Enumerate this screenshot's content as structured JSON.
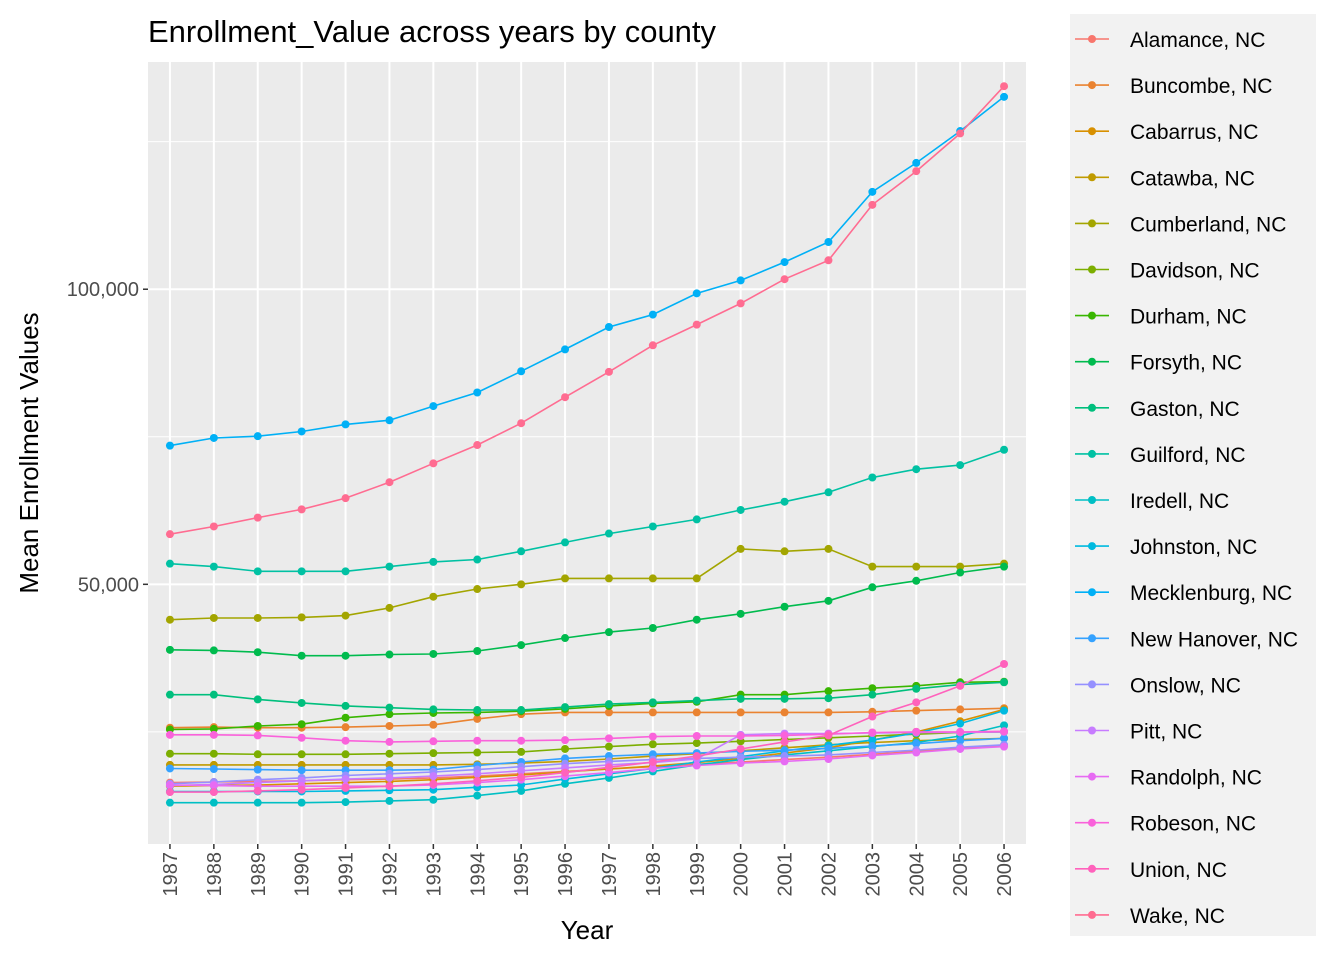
{
  "chart_data": {
    "type": "line",
    "title": "Enrollment_Value across years by county",
    "xlabel": "Year",
    "ylabel": "Mean Enrollment Values",
    "x": [
      1987,
      1988,
      1989,
      1990,
      1991,
      1992,
      1993,
      1994,
      1995,
      1996,
      1997,
      1998,
      1999,
      2000,
      2001,
      2002,
      2003,
      2004,
      2005,
      2006
    ],
    "xlim": [
      1986.5,
      2006.5
    ],
    "ylim": [
      6000,
      138500
    ],
    "y_ticks": [
      50000,
      100000
    ],
    "y_tick_labels": [
      "50,000",
      "100,000"
    ],
    "grid": true,
    "legend_position": "right",
    "series": [
      {
        "name": "Alamance, NC",
        "color": "#F8766D",
        "values": [
          16400,
          16500,
          16600,
          16700,
          16900,
          17000,
          17200,
          17500,
          17900,
          18300,
          18700,
          19100,
          19500,
          19900,
          20300,
          20700,
          21200,
          21700,
          22200,
          22700
        ]
      },
      {
        "name": "Buncombe, NC",
        "color": "#EA8331",
        "values": [
          25700,
          25800,
          25700,
          25700,
          25800,
          26000,
          26200,
          27200,
          28000,
          28300,
          28300,
          28300,
          28300,
          28300,
          28300,
          28300,
          28400,
          28600,
          28800,
          29000
        ]
      },
      {
        "name": "Cabarrus, NC",
        "color": "#D89000",
        "values": [
          15800,
          15900,
          16000,
          16200,
          16400,
          16600,
          16900,
          17300,
          17700,
          18200,
          18700,
          19200,
          19800,
          20500,
          21400,
          22300,
          23600,
          25000,
          26800,
          28800
        ]
      },
      {
        "name": "Catawba, NC",
        "color": "#C09B00",
        "values": [
          19400,
          19400,
          19400,
          19400,
          19400,
          19400,
          19400,
          19500,
          19700,
          20000,
          20400,
          20900,
          21300,
          21800,
          22300,
          22800,
          23200,
          23500,
          23700,
          23900
        ]
      },
      {
        "name": "Cumberland, NC",
        "color": "#A3A500",
        "values": [
          44000,
          44300,
          44300,
          44400,
          44700,
          46000,
          47900,
          49200,
          50000,
          51000,
          51000,
          51000,
          51000,
          56000,
          55600,
          56000,
          53000,
          53000,
          53000,
          53500
        ]
      },
      {
        "name": "Davidson, NC",
        "color": "#7CAE00",
        "values": [
          21300,
          21300,
          21200,
          21200,
          21200,
          21300,
          21400,
          21500,
          21600,
          22100,
          22500,
          22900,
          23100,
          23400,
          23700,
          24000,
          24300,
          24600,
          24900,
          25000
        ]
      },
      {
        "name": "Durham, NC",
        "color": "#39B600",
        "values": [
          25400,
          25500,
          26000,
          26300,
          27400,
          28000,
          28200,
          28300,
          28500,
          28900,
          29400,
          29800,
          30100,
          31300,
          31300,
          31900,
          32400,
          32800,
          33400,
          33500
        ]
      },
      {
        "name": "Forsyth, NC",
        "color": "#00BB4E",
        "values": [
          38900,
          38800,
          38500,
          37900,
          37900,
          38100,
          38200,
          38700,
          39700,
          40900,
          41900,
          42600,
          44000,
          45000,
          46200,
          47200,
          49500,
          50600,
          52000,
          53000
        ]
      },
      {
        "name": "Gaston, NC",
        "color": "#00BF7D",
        "values": [
          31300,
          31300,
          30500,
          29900,
          29400,
          29100,
          28800,
          28700,
          28700,
          29200,
          29700,
          30000,
          30300,
          30600,
          30600,
          30700,
          31300,
          32300,
          33000,
          33400
        ]
      },
      {
        "name": "Guilford, NC",
        "color": "#00C1A3",
        "values": [
          53500,
          53000,
          52200,
          52200,
          52200,
          53000,
          53800,
          54200,
          55600,
          57100,
          58600,
          59800,
          61000,
          62600,
          64000,
          65600,
          68100,
          69500,
          70200,
          72800
        ]
      },
      {
        "name": "Iredell, NC",
        "color": "#00BFC4",
        "values": [
          13000,
          13000,
          13000,
          13000,
          13100,
          13300,
          13500,
          14200,
          15000,
          16200,
          17200,
          18300,
          19400,
          20300,
          21100,
          21800,
          22500,
          23200,
          24300,
          26100
        ]
      },
      {
        "name": "Johnston, NC",
        "color": "#00BAE0",
        "values": [
          14900,
          14900,
          14900,
          14900,
          15000,
          15100,
          15200,
          15600,
          16000,
          17000,
          17900,
          18800,
          19900,
          20800,
          21800,
          22700,
          23600,
          24800,
          26400,
          28600
        ]
      },
      {
        "name": "Mecklenburg, NC",
        "color": "#00B0F6",
        "values": [
          73500,
          74800,
          75100,
          75900,
          77100,
          77800,
          80200,
          82500,
          86100,
          89800,
          93600,
          95700,
          99300,
          101500,
          104600,
          108000,
          116500,
          121400,
          126800,
          132600
        ]
      },
      {
        "name": "New Hanover, NC",
        "color": "#35A2FF",
        "values": [
          18800,
          18700,
          18600,
          18500,
          18500,
          18500,
          18600,
          19300,
          19900,
          20500,
          20900,
          21200,
          21400,
          21700,
          21900,
          22200,
          22600,
          23000,
          23500,
          23900
        ]
      },
      {
        "name": "Onslow, NC",
        "color": "#9590FF",
        "values": [
          16200,
          16500,
          16900,
          17200,
          17600,
          17900,
          18200,
          18600,
          19100,
          19600,
          20000,
          20300,
          20500,
          20700,
          20900,
          21100,
          21500,
          21900,
          22400,
          22800
        ]
      },
      {
        "name": "Pitt, NC",
        "color": "#C77CFF",
        "values": [
          15900,
          16100,
          16400,
          16700,
          17000,
          17200,
          17500,
          17900,
          18400,
          18900,
          19400,
          19800,
          20400,
          24500,
          24700,
          24700,
          24800,
          24900,
          24900,
          25000
        ]
      },
      {
        "name": "Randolph, NC",
        "color": "#E76BF3",
        "values": [
          16000,
          15900,
          15800,
          15800,
          15800,
          15800,
          16000,
          16400,
          16900,
          17500,
          18100,
          18800,
          19300,
          19700,
          20000,
          20400,
          21000,
          21500,
          22100,
          22500
        ]
      },
      {
        "name": "Robeson, NC",
        "color": "#FA62DB",
        "values": [
          24500,
          24500,
          24400,
          24000,
          23500,
          23300,
          23400,
          23500,
          23500,
          23600,
          23900,
          24200,
          24300,
          24300,
          24400,
          24600,
          24900,
          25000,
          25000,
          25100
        ]
      },
      {
        "name": "Union, NC",
        "color": "#FF62BC",
        "values": [
          14800,
          14800,
          15000,
          15200,
          15500,
          15800,
          16200,
          16700,
          17300,
          18100,
          19000,
          19900,
          20900,
          22100,
          23300,
          24400,
          27600,
          30000,
          32800,
          36500
        ]
      },
      {
        "name": "Wake, NC",
        "color": "#FF6C91",
        "values": [
          58500,
          59800,
          61300,
          62700,
          64600,
          67300,
          70500,
          73600,
          77300,
          81700,
          86000,
          90500,
          94000,
          97600,
          101700,
          104900,
          114300,
          120000,
          126400,
          134400
        ]
      }
    ]
  }
}
